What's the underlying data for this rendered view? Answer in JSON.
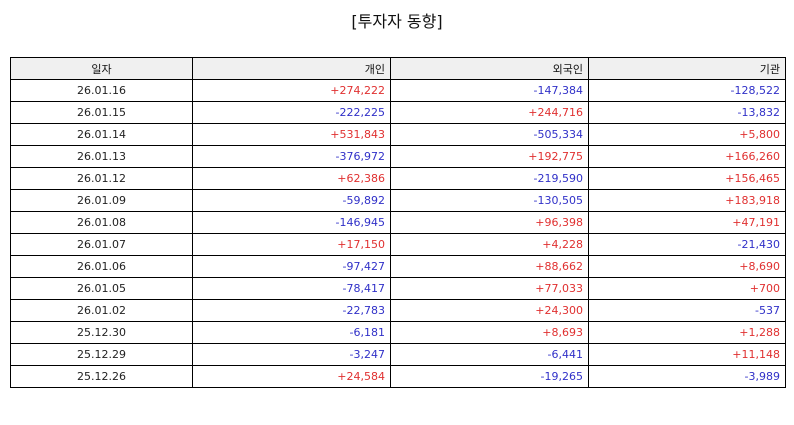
{
  "title": "[투자자 동향]",
  "table": {
    "headers": [
      "일자",
      "개인",
      "외국인",
      "기관"
    ],
    "rows": [
      [
        "26.01.16",
        "+274,222",
        "-147,384",
        "-128,522"
      ],
      [
        "26.01.15",
        "-222,225",
        "+244,716",
        "-13,832"
      ],
      [
        "26.01.14",
        "+531,843",
        "-505,334",
        "+5,800"
      ],
      [
        "26.01.13",
        "-376,972",
        "+192,775",
        "+166,260"
      ],
      [
        "26.01.12",
        "+62,386",
        "-219,590",
        "+156,465"
      ],
      [
        "26.01.09",
        "-59,892",
        "-130,505",
        "+183,918"
      ],
      [
        "26.01.08",
        "-146,945",
        "+96,398",
        "+47,191"
      ],
      [
        "26.01.07",
        "+17,150",
        "+4,228",
        "-21,430"
      ],
      [
        "26.01.06",
        "-97,427",
        "+88,662",
        "+8,690"
      ],
      [
        "26.01.05",
        "-78,417",
        "+77,033",
        "+700"
      ],
      [
        "26.01.02",
        "-22,783",
        "+24,300",
        "-537"
      ],
      [
        "25.12.30",
        "-6,181",
        "+8,693",
        "+1,288"
      ],
      [
        "25.12.29",
        "-3,247",
        "-6,441",
        "+11,148"
      ],
      [
        "25.12.26",
        "+24,584",
        "-19,265",
        "-3,989"
      ]
    ]
  },
  "colors": {
    "positive": "#e03030",
    "negative": "#3030c8",
    "header_bg": "#f0f0f0"
  }
}
